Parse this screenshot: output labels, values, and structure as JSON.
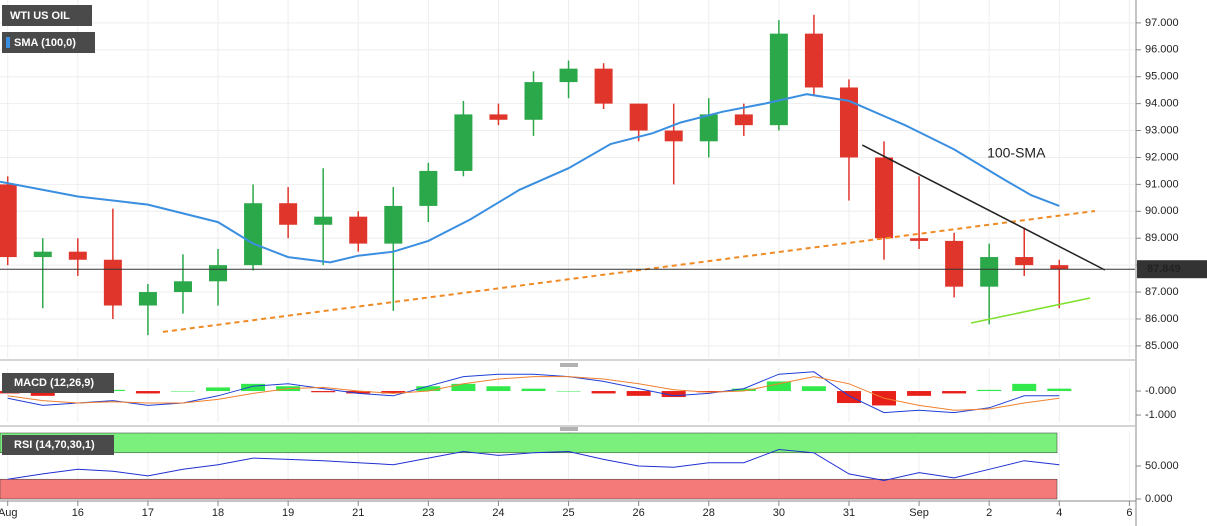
{
  "chart_data": [
    {
      "type": "candlestick",
      "title": "WTI US OIL",
      "x": [
        0,
        0.5,
        1,
        1.5,
        2,
        2.5,
        3,
        3.5,
        4,
        4.5,
        5,
        5.5,
        6,
        6.5,
        7,
        7.5,
        8,
        8.5,
        9,
        9.5,
        10,
        10.5,
        11,
        11.5,
        12,
        12.5,
        13,
        13.5,
        14,
        14.5,
        15
      ],
      "open": [
        91.0,
        88.3,
        88.5,
        88.2,
        86.5,
        87.0,
        87.4,
        88.0,
        90.3,
        89.5,
        89.8,
        88.8,
        90.2,
        91.5,
        93.6,
        93.4,
        94.8,
        95.3,
        94.0,
        93.0,
        92.6,
        93.6,
        93.2,
        96.6,
        94.6,
        92.0,
        89.0,
        88.9,
        87.2,
        88.3,
        88.0
      ],
      "high": [
        91.3,
        89.0,
        89.0,
        90.1,
        87.3,
        88.4,
        88.6,
        91.0,
        90.9,
        91.6,
        90.0,
        90.9,
        91.8,
        94.1,
        94.0,
        95.2,
        95.6,
        95.5,
        94.0,
        94.0,
        94.2,
        94.0,
        97.1,
        97.3,
        94.9,
        92.6,
        91.3,
        89.2,
        88.8,
        89.4,
        88.2
      ],
      "low": [
        88.0,
        86.4,
        87.6,
        86.0,
        85.4,
        86.2,
        86.5,
        87.8,
        89.0,
        88.0,
        88.5,
        86.3,
        89.6,
        91.3,
        93.2,
        92.8,
        94.2,
        93.8,
        92.6,
        91.0,
        92.0,
        92.8,
        93.0,
        94.3,
        90.4,
        88.2,
        88.6,
        86.8,
        85.8,
        87.6,
        86.4
      ],
      "close": [
        88.3,
        88.5,
        88.2,
        86.5,
        87.0,
        87.4,
        88.0,
        90.3,
        89.5,
        89.8,
        88.8,
        90.2,
        91.5,
        93.6,
        93.4,
        94.8,
        95.3,
        94.0,
        93.0,
        92.6,
        93.6,
        93.2,
        96.6,
        94.6,
        92.0,
        89.0,
        88.9,
        87.2,
        88.3,
        88.0,
        87.85
      ],
      "up_color": "#2ba84a",
      "down_color": "#e0352b",
      "overlays": [
        {
          "name": "SMA (100,0)",
          "color": "#3b8fe0",
          "x": [
            -0.11,
            0.3,
            1,
            2,
            3,
            3.5,
            4,
            4.6,
            5,
            5.5,
            6,
            6.6,
            7.3,
            8,
            8.6,
            9.2,
            9.6,
            10.2,
            10.8,
            11.4,
            12,
            12.8,
            13.5,
            14.2,
            14.6,
            15
          ],
          "values": [
            91.1,
            90.9,
            90.55,
            90.25,
            89.6,
            88.8,
            88.3,
            88.1,
            88.35,
            88.5,
            88.9,
            89.7,
            90.8,
            91.6,
            92.5,
            92.9,
            93.3,
            93.7,
            94.0,
            94.35,
            94.1,
            93.2,
            92.3,
            91.2,
            90.6,
            90.2
          ]
        }
      ],
      "annotations": [
        {
          "text": "100-SMA",
          "x": 13.97,
          "y": 92.13,
          "color": "#3b8fe0"
        }
      ],
      "trendlines": [
        {
          "x": [
            2.215,
            15.51
          ],
          "y": [
            85.52,
            90.01
          ],
          "color": "#f08a24",
          "dashed": true
        },
        {
          "x": [
            12.19,
            15.65
          ],
          "y": [
            92.46,
            87.82
          ],
          "color": "#222222",
          "dashed": false
        },
        {
          "x": [
            13.74,
            15.44
          ],
          "y": [
            85.85,
            86.78
          ],
          "color": "#7ee02a",
          "dashed": false
        }
      ],
      "last_price": 87.849,
      "xlim": [
        -0.11,
        16.08
      ],
      "ylim": [
        84.55,
        97.85
      ],
      "xticks": [
        {
          "value": 0,
          "label": "Aug"
        },
        {
          "value": 1,
          "label": "16"
        },
        {
          "value": 2,
          "label": "17"
        },
        {
          "value": 3,
          "label": "18"
        },
        {
          "value": 4,
          "label": "19"
        },
        {
          "value": 5,
          "label": "21"
        },
        {
          "value": 6,
          "label": "23"
        },
        {
          "value": 7,
          "label": "24"
        },
        {
          "value": 8,
          "label": "25"
        },
        {
          "value": 9,
          "label": "26"
        },
        {
          "value": 10,
          "label": "28"
        },
        {
          "value": 11,
          "label": "30"
        },
        {
          "value": 12,
          "label": "31"
        },
        {
          "value": 13,
          "label": "Sep"
        },
        {
          "value": 14,
          "label": "2"
        },
        {
          "value": 15,
          "label": "4"
        },
        {
          "value": 16,
          "label": "6"
        }
      ],
      "yticks": [
        {
          "value": 85,
          "label": "85.000"
        },
        {
          "value": 86,
          "label": "86.000"
        },
        {
          "value": 87,
          "label": "87.000"
        },
        {
          "value": 88,
          "label": "88.000"
        },
        {
          "value": 89,
          "label": "89.000"
        },
        {
          "value": 90,
          "label": "90.000"
        },
        {
          "value": 91,
          "label": "91.000"
        },
        {
          "value": 92,
          "label": "92.000"
        },
        {
          "value": 93,
          "label": "93.000"
        },
        {
          "value": 94,
          "label": "94.000"
        },
        {
          "value": 95,
          "label": "95.000"
        },
        {
          "value": 96,
          "label": "96.000"
        },
        {
          "value": 97,
          "label": "97.000"
        }
      ],
      "grid": true
    },
    {
      "type": "macd",
      "title": "MACD (12,26,9)",
      "x": [
        0,
        0.5,
        1,
        1.5,
        2,
        2.5,
        3,
        3.5,
        4,
        4.5,
        5,
        5.5,
        6,
        6.5,
        7,
        7.5,
        8,
        8.5,
        9,
        9.5,
        10,
        10.5,
        11,
        11.5,
        12,
        12.5,
        13,
        13.5,
        14,
        14.5,
        15
      ],
      "series": [
        {
          "color": "#1f3fd6",
          "values": [
            -0.3,
            -0.6,
            -0.5,
            -0.4,
            -0.6,
            -0.5,
            -0.2,
            0.2,
            0.3,
            0.1,
            -0.1,
            -0.2,
            0.2,
            0.6,
            0.7,
            0.7,
            0.6,
            0.4,
            0.1,
            -0.2,
            -0.1,
            0.1,
            0.7,
            0.8,
            -0.2,
            -0.9,
            -0.8,
            -0.9,
            -0.7,
            -0.2,
            -0.2
          ]
        },
        {
          "color": "#f08030",
          "values": [
            -0.2,
            -0.4,
            -0.5,
            -0.45,
            -0.5,
            -0.5,
            -0.35,
            -0.1,
            0.1,
            0.15,
            0.0,
            -0.1,
            0.0,
            0.3,
            0.5,
            0.6,
            0.6,
            0.5,
            0.3,
            0.05,
            -0.05,
            0.0,
            0.3,
            0.6,
            0.3,
            -0.3,
            -0.6,
            -0.8,
            -0.75,
            -0.5,
            -0.3
          ]
        }
      ],
      "histogram": [
        -0.1,
        -0.2,
        0,
        0.05,
        -0.1,
        0,
        0.15,
        0.3,
        0.2,
        -0.05,
        -0.1,
        -0.1,
        0.2,
        0.3,
        0.2,
        0.1,
        0,
        -0.1,
        -0.2,
        -0.25,
        -0.05,
        0.1,
        0.4,
        0.2,
        -0.5,
        -0.6,
        -0.2,
        -0.1,
        0.05,
        0.3,
        0.1
      ],
      "up_color": "#33e84a",
      "down_color": "#e8201a",
      "ylim": [
        -1.29,
        0.96
      ],
      "yticks": [
        {
          "value": 0,
          "label": "-0.000"
        },
        {
          "value": -1,
          "label": "-1.000"
        }
      ]
    },
    {
      "type": "rsi",
      "title": "RSI (14,70,30,1)",
      "x": [
        0,
        0.5,
        1,
        1.5,
        2,
        2.5,
        3,
        3.5,
        4,
        4.5,
        5,
        5.5,
        6,
        6.5,
        7,
        7.5,
        8,
        8.5,
        9,
        9.5,
        10,
        10.5,
        11,
        11.5,
        12,
        12.5,
        13,
        13.5,
        14,
        14.5,
        15
      ],
      "values": [
        30,
        38,
        45,
        42,
        35,
        45,
        52,
        62,
        60,
        58,
        55,
        52,
        62,
        72,
        66,
        70,
        72,
        60,
        50,
        48,
        55,
        55,
        75,
        70,
        38,
        28,
        40,
        32,
        45,
        58,
        52
      ],
      "color": "#2030d0",
      "bands": [
        {
          "from": 70,
          "to": 100,
          "color": "#7cf07c"
        },
        {
          "from": 0,
          "to": 30,
          "color": "#f47a7a"
        }
      ],
      "ylim": [
        -1.5,
        101.5
      ],
      "yticks": [
        {
          "value": 50,
          "label": "50.000"
        },
        {
          "value": 0,
          "label": "0.000"
        }
      ]
    }
  ]
}
